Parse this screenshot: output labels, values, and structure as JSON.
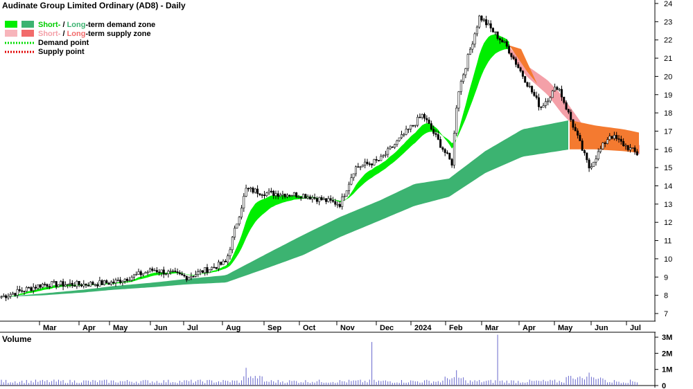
{
  "chart_data": {
    "type": "candlestick",
    "title": "Audinate Group Limited Ordinary (AD8) - Daily",
    "legend": {
      "demand_zone": {
        "short": "Short-",
        "sep": " / ",
        "long": "Long",
        "rest": "-term demand zone"
      },
      "supply_zone": {
        "short": "Short-",
        "sep": " / ",
        "long": "Long",
        "rest": "-term supply zone"
      },
      "demand_point": "Demand point",
      "supply_point": "Supply point"
    },
    "y_axis": {
      "ticks": [
        "24",
        "23",
        "22",
        "21",
        "20",
        "19",
        "18",
        "17",
        "16",
        "15",
        "14",
        "13",
        "12",
        "11",
        "10",
        "9",
        "8",
        "7"
      ],
      "ylim": [
        6.5,
        24.2
      ]
    },
    "x_axis": {
      "ticks": [
        "Mar",
        "Apr",
        "May",
        "Jun",
        "Jul",
        "Aug",
        "Sep",
        "Oct",
        "Nov",
        "Dec",
        "2024",
        "Feb",
        "Mar",
        "Apr",
        "May",
        "Jun",
        "Jul"
      ]
    },
    "volume": {
      "label": "Volume",
      "ticks": [
        "3M",
        "2M",
        "1M",
        "0"
      ],
      "ylim": [
        0,
        3400000
      ]
    },
    "colors": {
      "short_demand": "#00ee00",
      "long_demand": "#3cb371",
      "short_supply": "#f4a0a8",
      "long_supply": "#f47a30",
      "candle": "#000000",
      "volume": "#6666cc",
      "axis": "#000000"
    },
    "price_path": [
      [
        "Feb",
        7.9
      ],
      [
        "Mar",
        8.6
      ],
      [
        "Apr",
        8.6
      ],
      [
        "May",
        8.7
      ],
      [
        "Jun",
        9.4
      ],
      [
        "Jul",
        9.0
      ],
      [
        "Aug",
        9.8
      ],
      [
        "Aug",
        13.8
      ],
      [
        "Sep",
        13.6
      ],
      [
        "Oct",
        13.5
      ],
      [
        "Nov",
        13.0
      ],
      [
        "Nov",
        15.0
      ],
      [
        "Dec",
        15.4
      ],
      [
        "Dec",
        17.9
      ],
      [
        "Feb",
        15.2
      ],
      [
        "Feb",
        19.0
      ],
      [
        "Mar",
        23.3
      ],
      [
        "Mar",
        21.6
      ],
      [
        "Apr",
        18.3
      ],
      [
        "May",
        19.5
      ],
      [
        "May",
        15.0
      ],
      [
        "Jun",
        16.8
      ],
      [
        "Jul",
        15.6
      ]
    ],
    "long_demand_band": {
      "x": [
        "Feb",
        "Mar",
        "Apr",
        "May",
        "Jun",
        "Jul",
        "Aug",
        "Sep",
        "Oct",
        "Nov",
        "Dec",
        "2024",
        "Feb",
        "Mar",
        "Apr",
        "May"
      ],
      "upper": [
        7.9,
        8.1,
        8.3,
        8.5,
        8.7,
        8.9,
        9.1,
        10.3,
        11.3,
        12.3,
        13.2,
        14.1,
        14.4,
        15.9,
        17.1,
        17.6
      ],
      "lower": [
        7.9,
        8.0,
        8.15,
        8.3,
        8.45,
        8.6,
        8.7,
        9.5,
        10.2,
        11.2,
        12.1,
        12.9,
        13.4,
        14.7,
        15.6,
        16.0
      ]
    }
  }
}
